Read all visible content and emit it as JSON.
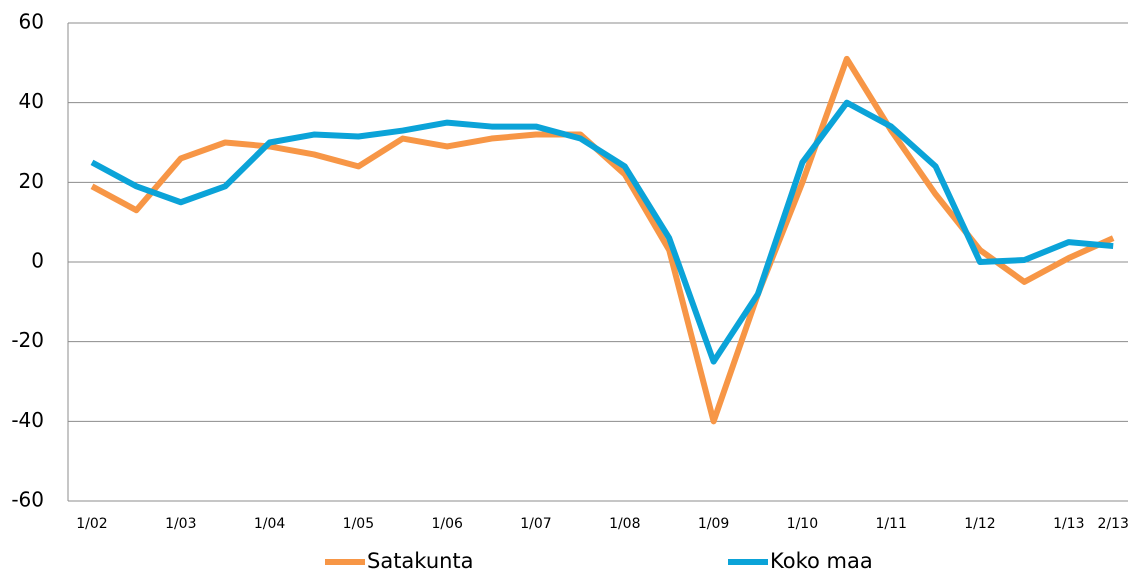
{
  "chart_data": {
    "type": "line",
    "categories": [
      "1/02",
      null,
      "1/03",
      null,
      "1/04",
      null,
      "1/05",
      null,
      "1/06",
      null,
      "1/07",
      null,
      "1/08",
      null,
      "1/09",
      null,
      "1/10",
      null,
      "1/11",
      null,
      "1/12",
      null,
      "1/13",
      "2/13"
    ],
    "series": [
      {
        "name": "Satakunta",
        "color": "#f79646",
        "values": [
          19,
          13,
          26,
          30,
          29,
          27,
          24,
          31,
          29,
          31,
          32,
          32,
          22,
          3,
          -40,
          -8,
          20,
          51,
          33,
          17,
          3,
          -5,
          1,
          6
        ]
      },
      {
        "name": "Koko maa",
        "color": "#0ba3d8",
        "values": [
          25,
          19,
          15,
          19,
          30,
          32,
          31.5,
          33,
          35,
          34,
          34,
          31,
          24,
          6,
          -25,
          -8,
          25,
          40,
          34,
          24,
          0,
          0.5,
          5,
          4
        ]
      }
    ],
    "ylim": [
      -60,
      60
    ],
    "yticks": [
      -60,
      -40,
      -20,
      0,
      20,
      40,
      60
    ],
    "grid": true
  }
}
